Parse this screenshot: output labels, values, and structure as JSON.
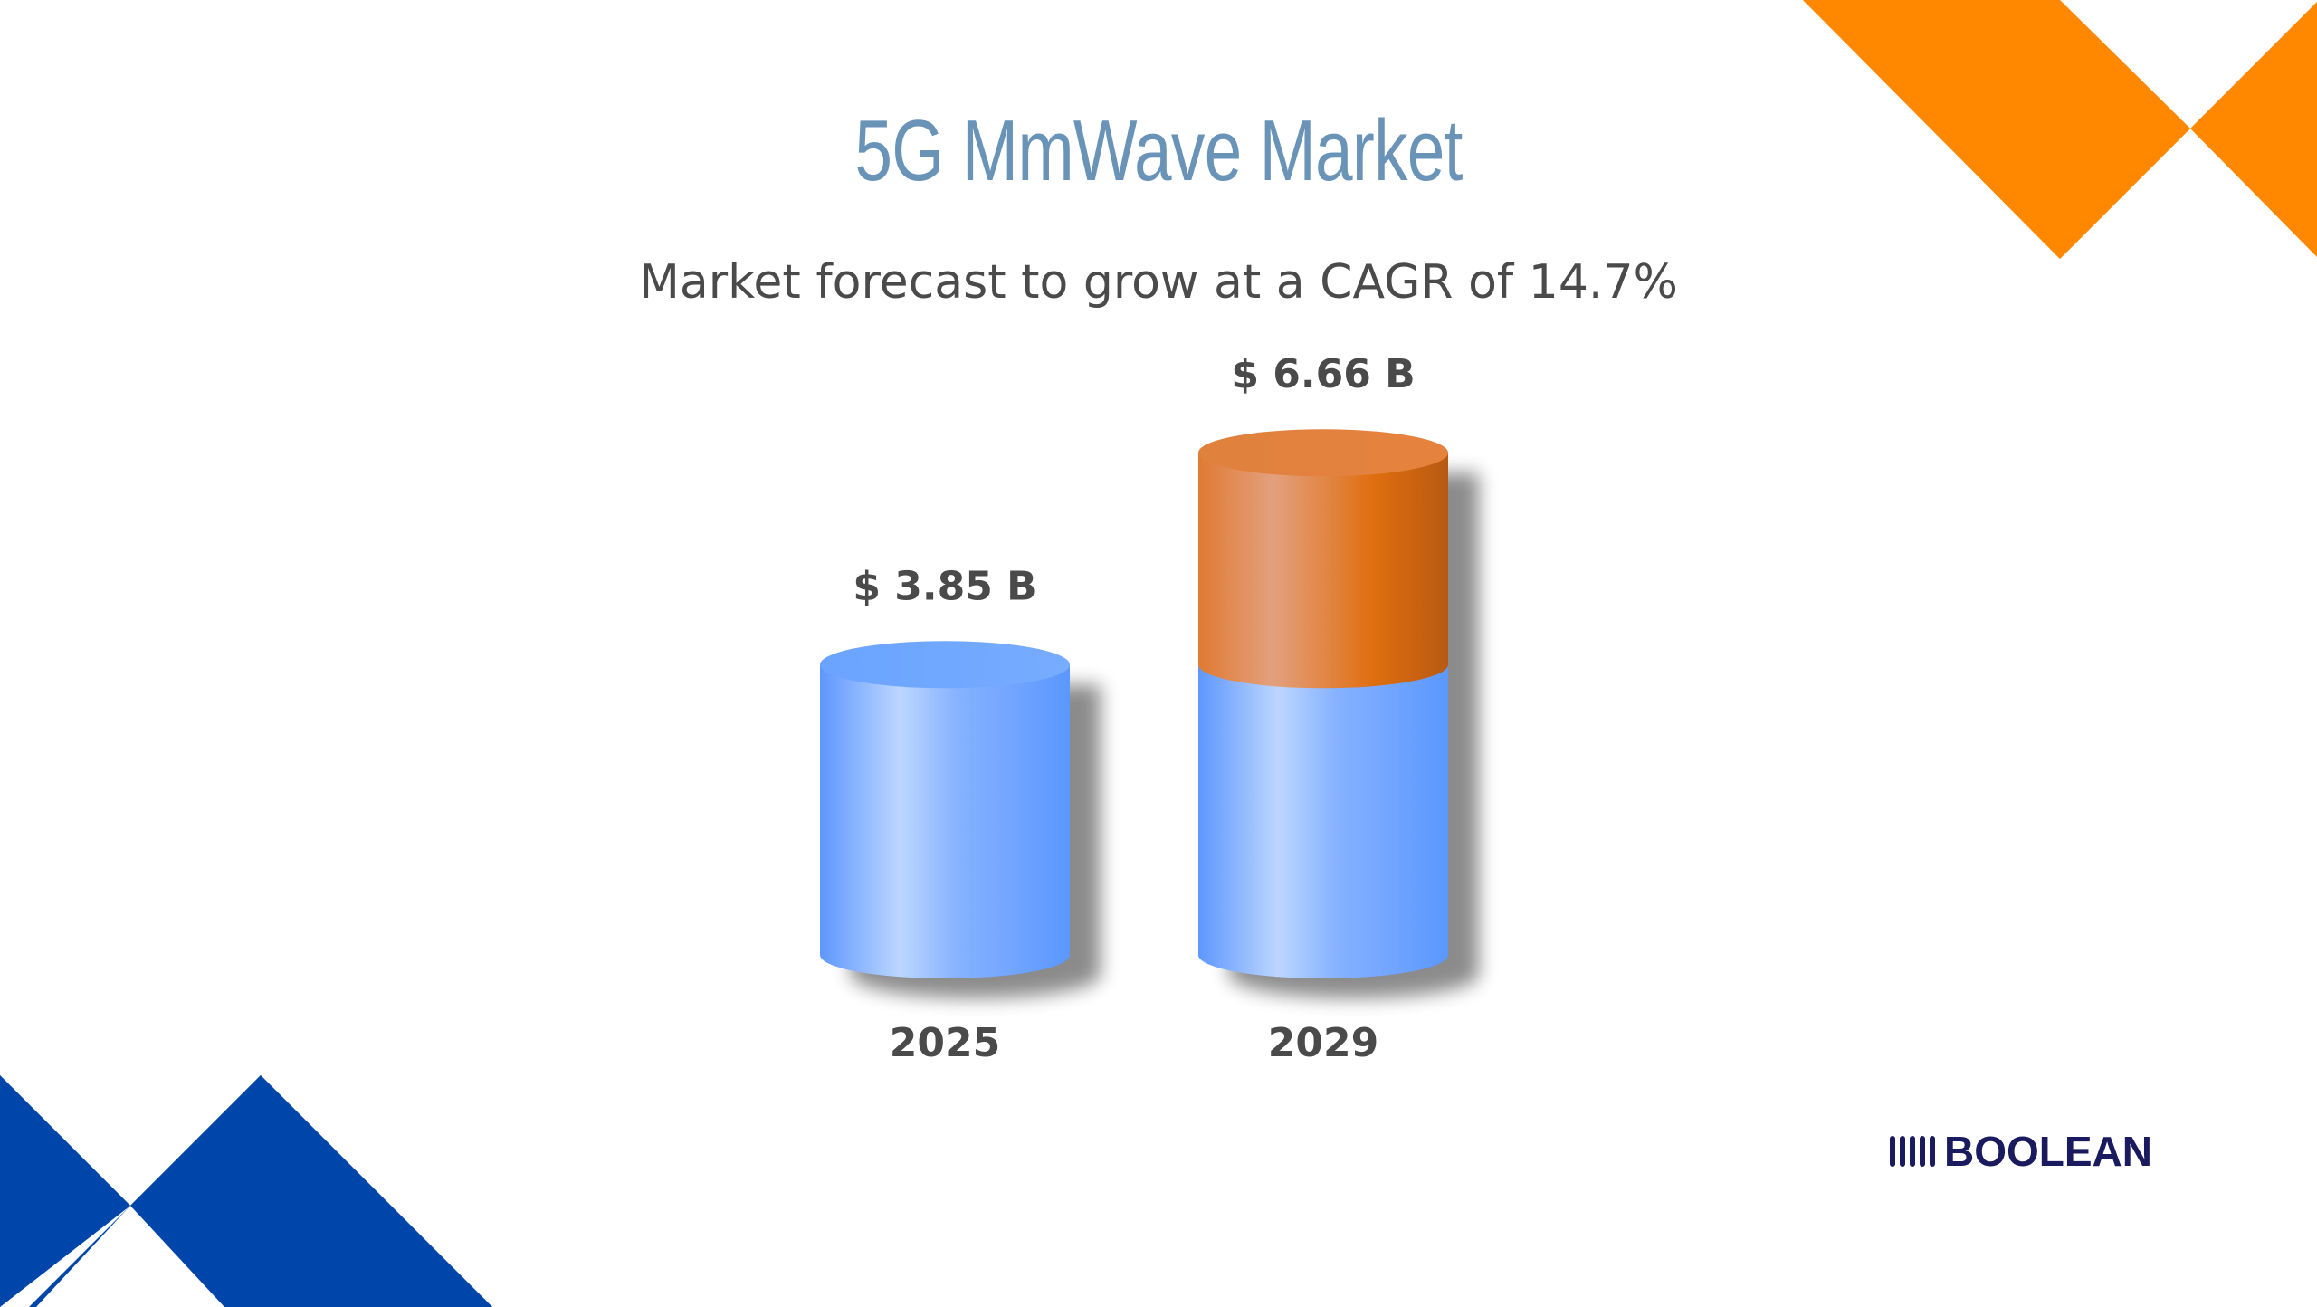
{
  "title": "5G MmWave Market",
  "subtitle": "Market forecast to grow at a CAGR of 14.7%",
  "logo": {
    "text": "BOOLEAN"
  },
  "colors": {
    "base_segment": "#6aa3ff",
    "growth_segment": "#e07a2e",
    "accent_orange": "#ff8800",
    "accent_blue": "#0046aa",
    "logo": "#1a1a5e"
  },
  "chart_data": {
    "type": "bar",
    "style": "3d-cylinder",
    "categories": [
      "2025",
      "2029"
    ],
    "values": [
      3.85,
      6.66
    ],
    "value_labels": [
      "$ 3.85 B",
      "$ 6.66 B"
    ],
    "series": [
      {
        "values": [
          3.85,
          3.85
        ]
      },
      {
        "values": [
          0,
          2.81
        ]
      }
    ],
    "xlabel": "",
    "ylabel": "",
    "grid": false,
    "legend": "none"
  }
}
